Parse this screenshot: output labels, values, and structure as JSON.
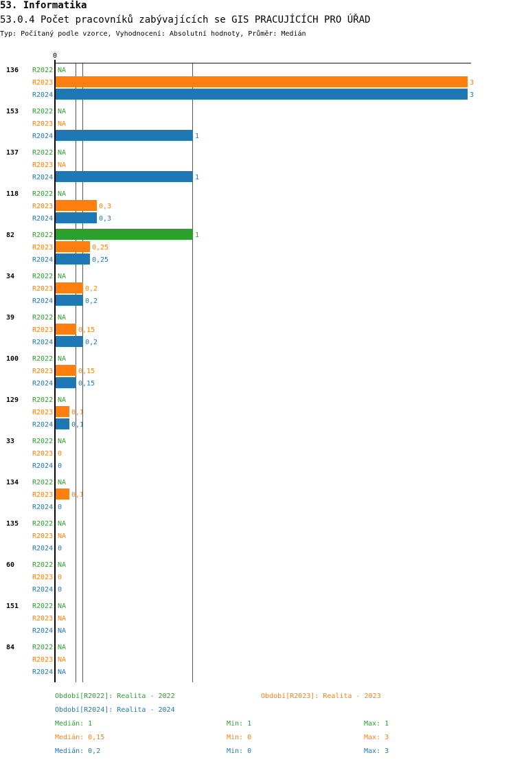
{
  "section_title": "53. Informatika",
  "chart_title": "53.0.4 Počet pracovníků zabývajících se GIS PRACUJÍCÍCH PRO ÚŘAD",
  "subtitle": "Typ: Počítaný podle vzorce, Vyhodnocení: Absolutní hodnoty, Průměr: Medián",
  "colors": {
    "R2022": "#2ca02c",
    "R2023": "#ff7f0e",
    "R2024": "#1f77b4"
  },
  "chart_data": {
    "type": "bar",
    "orientation": "horizontal",
    "x_tick_labels": [
      "0"
    ],
    "xlim": [
      0,
      3
    ],
    "categories": [
      "136",
      "153",
      "137",
      "118",
      "82",
      "34",
      "39",
      "100",
      "129",
      "33",
      "134",
      "135",
      "60",
      "151",
      "84"
    ],
    "series": [
      {
        "name": "R2022",
        "values": [
          null,
          null,
          null,
          null,
          1,
          null,
          null,
          null,
          null,
          null,
          null,
          null,
          null,
          null,
          null
        ]
      },
      {
        "name": "R2023",
        "values": [
          3,
          null,
          null,
          0.3,
          0.25,
          0.2,
          0.15,
          0.15,
          0.1,
          0,
          0.1,
          null,
          0,
          null,
          null
        ]
      },
      {
        "name": "R2024",
        "values": [
          3,
          1,
          1,
          0.3,
          0.25,
          0.2,
          0.2,
          0.15,
          0.1,
          0,
          0,
          0,
          0,
          null,
          null
        ]
      }
    ],
    "median_lines": {
      "R2022": 1,
      "R2023": 0.15,
      "R2024": 0.2
    },
    "na_label": "NA"
  },
  "legend": {
    "r2022": "Období[R2022]: Realita - 2022",
    "r2023": "Období[R2023]: Realita - 2023",
    "r2024": "Období[R2024]: Realita - 2024"
  },
  "stats": [
    {
      "median": "Medián: 1",
      "min": "Min: 1",
      "max": "Max: 1"
    },
    {
      "median": "Medián: 0,15",
      "min": "Min: 0",
      "max": "Max: 3"
    },
    {
      "median": "Medián: 0,2",
      "min": "Min: 0",
      "max": "Max: 3"
    }
  ]
}
